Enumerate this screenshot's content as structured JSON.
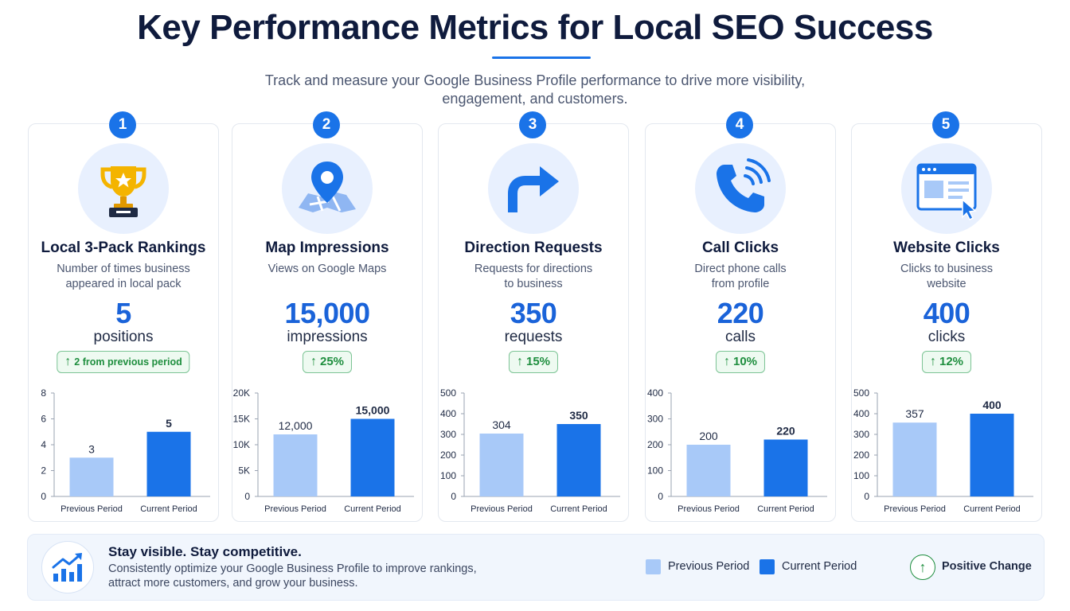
{
  "header": {
    "title": "Key Performance Metrics for Local SEO Success",
    "subtitle_line1": "Track and measure your Google Business Profile performance to drive more visibility,",
    "subtitle_line2": "engagement, and customers."
  },
  "colors": {
    "accent": "#1a73e8",
    "previous_period": "#a8c9f8",
    "current_period": "#1a73e8",
    "positive": "#1e8e3e"
  },
  "cards": [
    {
      "number": "1",
      "icon": "trophy-icon",
      "title": "Local 3-Pack Rankings",
      "desc_line1": "Number of times business",
      "desc_line2": "appeared in local pack",
      "value": "5",
      "unit": "positions",
      "change": "2 from previous period"
    },
    {
      "number": "2",
      "icon": "map-pin-icon",
      "title": "Map Impressions",
      "desc_line1": "Views on Google Maps",
      "desc_line2": "",
      "value": "15,000",
      "unit": "impressions",
      "change": "25%"
    },
    {
      "number": "3",
      "icon": "direction-arrow-icon",
      "title": "Direction Requests",
      "desc_line1": "Requests for directions",
      "desc_line2": "to business",
      "value": "350",
      "unit": "requests",
      "change": "15%"
    },
    {
      "number": "4",
      "icon": "phone-icon",
      "title": "Call Clicks",
      "desc_line1": "Direct phone calls",
      "desc_line2": "from profile",
      "value": "220",
      "unit": "calls",
      "change": "10%"
    },
    {
      "number": "5",
      "icon": "browser-click-icon",
      "title": "Website Clicks",
      "desc_line1": "Clicks to business",
      "desc_line2": "website",
      "value": "400",
      "unit": "clicks",
      "change": "12%"
    }
  ],
  "chart_data": [
    {
      "type": "bar",
      "categories": [
        "Previous Period",
        "Current Period"
      ],
      "values": [
        3,
        5
      ],
      "value_labels": [
        "3",
        "5"
      ],
      "ylim": [
        0,
        8
      ],
      "yticks": [
        0,
        2,
        4,
        6,
        8
      ],
      "ytick_labels": [
        "0",
        "2",
        "4",
        "6",
        "8"
      ],
      "grid": false
    },
    {
      "type": "bar",
      "categories": [
        "Previous Period",
        "Current Period"
      ],
      "values": [
        12000,
        15000
      ],
      "value_labels": [
        "12,000",
        "15,000"
      ],
      "ylim": [
        0,
        20000
      ],
      "yticks": [
        0,
        5000,
        10000,
        15000,
        20000
      ],
      "ytick_labels": [
        "0",
        "5K",
        "10K",
        "15K",
        "20K"
      ],
      "grid": false
    },
    {
      "type": "bar",
      "categories": [
        "Previous Period",
        "Current Period"
      ],
      "values": [
        304,
        350
      ],
      "value_labels": [
        "304",
        "350"
      ],
      "ylim": [
        0,
        500
      ],
      "yticks": [
        0,
        100,
        200,
        300,
        400,
        500
      ],
      "ytick_labels": [
        "0",
        "100",
        "200",
        "300",
        "400",
        "500"
      ],
      "grid": false
    },
    {
      "type": "bar",
      "categories": [
        "Previous Period",
        "Current Period"
      ],
      "values": [
        200,
        220
      ],
      "value_labels": [
        "200",
        "220"
      ],
      "ylim": [
        0,
        400
      ],
      "yticks": [
        0,
        100,
        200,
        300,
        400
      ],
      "ytick_labels": [
        "0",
        "100",
        "200",
        "300",
        "400"
      ],
      "grid": false
    },
    {
      "type": "bar",
      "categories": [
        "Previous Period",
        "Current Period"
      ],
      "values": [
        357,
        400
      ],
      "value_labels": [
        "357",
        "400"
      ],
      "ylim": [
        0,
        500
      ],
      "yticks": [
        0,
        100,
        200,
        300,
        400,
        500
      ],
      "ytick_labels": [
        "0",
        "100",
        "200",
        "300",
        "400",
        "500"
      ],
      "grid": false
    }
  ],
  "footer": {
    "heading": "Stay visible. Stay competitive.",
    "text": "Consistently optimize your Google Business Profile to improve rankings, attract more customers, and grow your business.",
    "icon": "growth-chart-icon",
    "legend": {
      "previous": "Previous Period",
      "current": "Current Period",
      "positive": "Positive Change"
    }
  }
}
